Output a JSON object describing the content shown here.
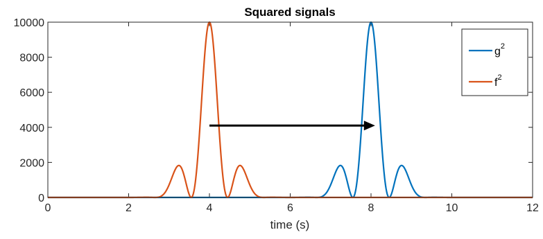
{
  "chart_data": {
    "type": "line",
    "title": "Squared signals",
    "xlabel": "time (s)",
    "ylabel": "",
    "xlim": [
      0,
      12
    ],
    "ylim": [
      0,
      10000
    ],
    "xticks": [
      0,
      2,
      4,
      6,
      8,
      10,
      12
    ],
    "yticks": [
      0,
      2000,
      4000,
      6000,
      8000,
      10000
    ],
    "legend_position": "top-right",
    "series": [
      {
        "name": "g",
        "name_superscript": "2",
        "color": "#0072BD",
        "peaks": [
          {
            "x": 7.2,
            "y": 2000
          },
          {
            "x": 8.0,
            "y": 10000
          },
          {
            "x": 8.8,
            "y": 2000
          }
        ],
        "zeros_between_peaks": [
          7.55,
          8.45
        ],
        "support": [
          6.6,
          9.4
        ]
      },
      {
        "name": "f",
        "name_superscript": "2",
        "color": "#D95319",
        "peaks": [
          {
            "x": 3.2,
            "y": 2000
          },
          {
            "x": 4.0,
            "y": 10000
          },
          {
            "x": 4.8,
            "y": 2000
          }
        ],
        "zeros_between_peaks": [
          3.55,
          4.45
        ],
        "support": [
          2.6,
          5.4
        ]
      }
    ],
    "annotations": [
      {
        "type": "arrow",
        "from": {
          "x": 4.0,
          "y": 4100
        },
        "to": {
          "x": 8.1,
          "y": 4100
        },
        "color": "#000000"
      }
    ]
  }
}
